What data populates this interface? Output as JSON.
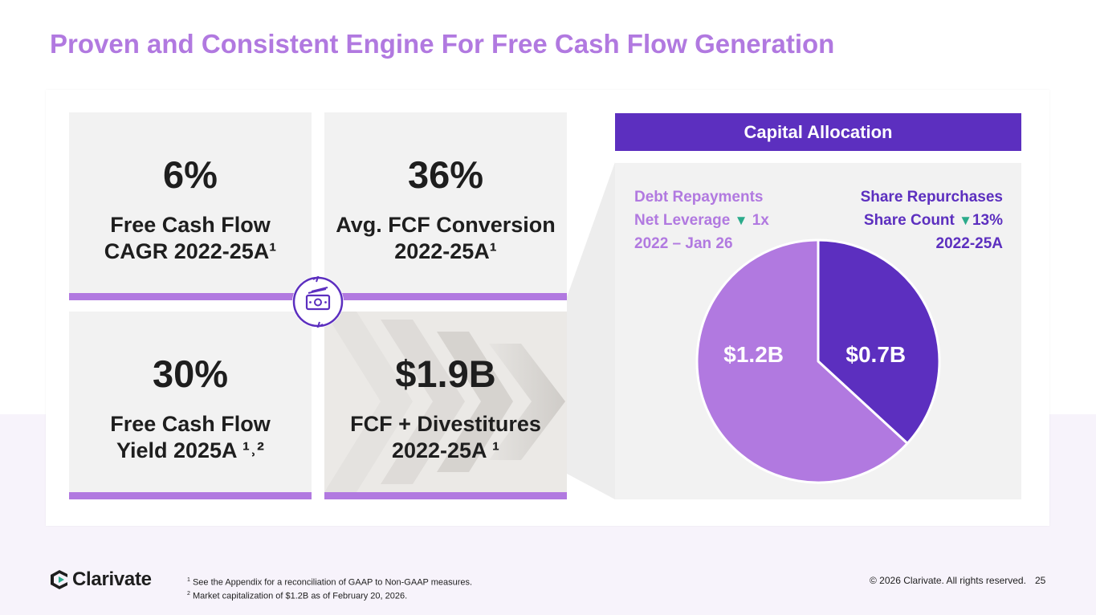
{
  "title": "Proven and Consistent Engine For Free Cash Flow Generation",
  "colors": {
    "accent_light": "#b179e0",
    "accent_dark": "#5c2fbf",
    "down_arrow": "#2bab8b",
    "tile_bg": "#f2f2f2"
  },
  "metrics": [
    {
      "value": "6%",
      "line1": "Free Cash Flow",
      "line2": "CAGR 2022-25A¹"
    },
    {
      "value": "36%",
      "line1": "Avg. FCF Conversion",
      "line2": "2022-25A¹"
    },
    {
      "value": "30%",
      "line1": "Free Cash Flow",
      "line2": "Yield 2025A ¹˒²"
    },
    {
      "value": "$1.9B",
      "line1": "FCF + Divestitures",
      "line2": "2022-25A ¹"
    }
  ],
  "center_icon": "cash-cycle-icon",
  "capital_allocation": {
    "header": "Capital Allocation",
    "left": {
      "title": "Debt Repayments",
      "line2_prefix": "Net Leverage",
      "line2_triangle": "▼",
      "line2_value": "1x",
      "line3": "2022 – Jan 26"
    },
    "right": {
      "title": "Share Repurchases",
      "line2_prefix": "Share Count",
      "line2_triangle": "▼",
      "line2_value": "13%",
      "line3": "2022-25A"
    }
  },
  "chart_data": {
    "type": "pie",
    "title": "Capital Allocation",
    "slices": [
      {
        "label": "$0.7B",
        "name": "Share Repurchases",
        "value": 0.7,
        "color": "#5c2fbf"
      },
      {
        "label": "$1.2B",
        "name": "Debt Repayments",
        "value": 1.2,
        "color": "#b179e0"
      }
    ],
    "start_angle_deg": 0,
    "direction": "clockwise"
  },
  "footer": {
    "logo_text": "Clarivate",
    "footnote1_marker": "1",
    "footnote1": " See the Appendix for a reconciliation of GAAP to Non-GAAP measures.",
    "footnote2_marker": "2",
    "footnote2": " Market capitalization of $1.2B as of February 20, 2026.",
    "copyright": "© 2026 Clarivate. All rights reserved.",
    "page_number": "25"
  }
}
